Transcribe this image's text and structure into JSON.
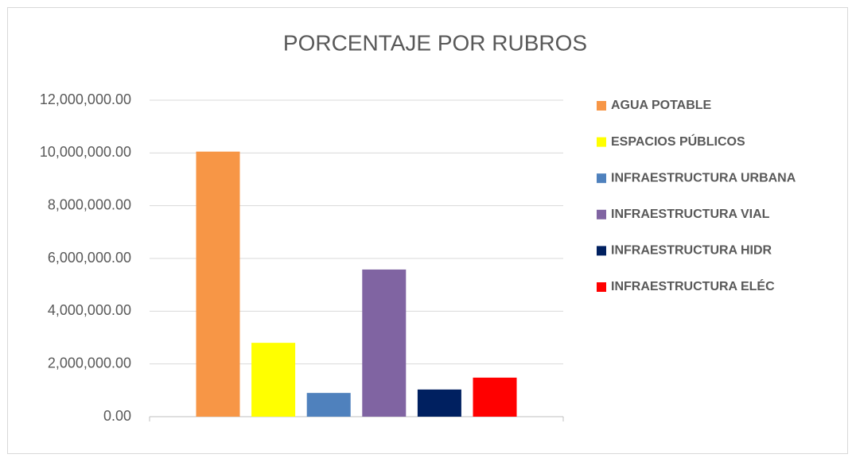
{
  "chart_data": {
    "type": "bar",
    "title": "PORCENTAJE POR RUBROS",
    "series": [
      {
        "name": "AGUA POTABLE",
        "color": "#f79646",
        "values": [
          10050000
        ]
      },
      {
        "name": "ESPACIOS PÚBLICOS",
        "color": "#ffff00",
        "values": [
          2800000
        ]
      },
      {
        "name": "INFRAESTRUCTURA URBANA",
        "color": "#4f81bd",
        "values": [
          900000
        ]
      },
      {
        "name": "INFRAESTRUCTURA VIAL",
        "color": "#8064a2",
        "values": [
          5580000
        ]
      },
      {
        "name": "INFRAESTRUCTURA HIDR",
        "color": "#002060",
        "values": [
          1030000
        ]
      },
      {
        "name": "INFRAESTRUCTURA ELÉC",
        "color": "#ff0000",
        "values": [
          1480000
        ]
      }
    ],
    "ylim": [
      0,
      12000000
    ],
    "yticks": [
      {
        "value": 0,
        "label": "0.00"
      },
      {
        "value": 2000000,
        "label": "2,000,000.00"
      },
      {
        "value": 4000000,
        "label": "4,000,000.00"
      },
      {
        "value": 6000000,
        "label": "6,000,000.00"
      },
      {
        "value": 8000000,
        "label": "8,000,000.00"
      },
      {
        "value": 10000000,
        "label": "10,000,000.00"
      },
      {
        "value": 12000000,
        "label": "12,000,000.00"
      }
    ],
    "grid": true,
    "legend": "right"
  }
}
